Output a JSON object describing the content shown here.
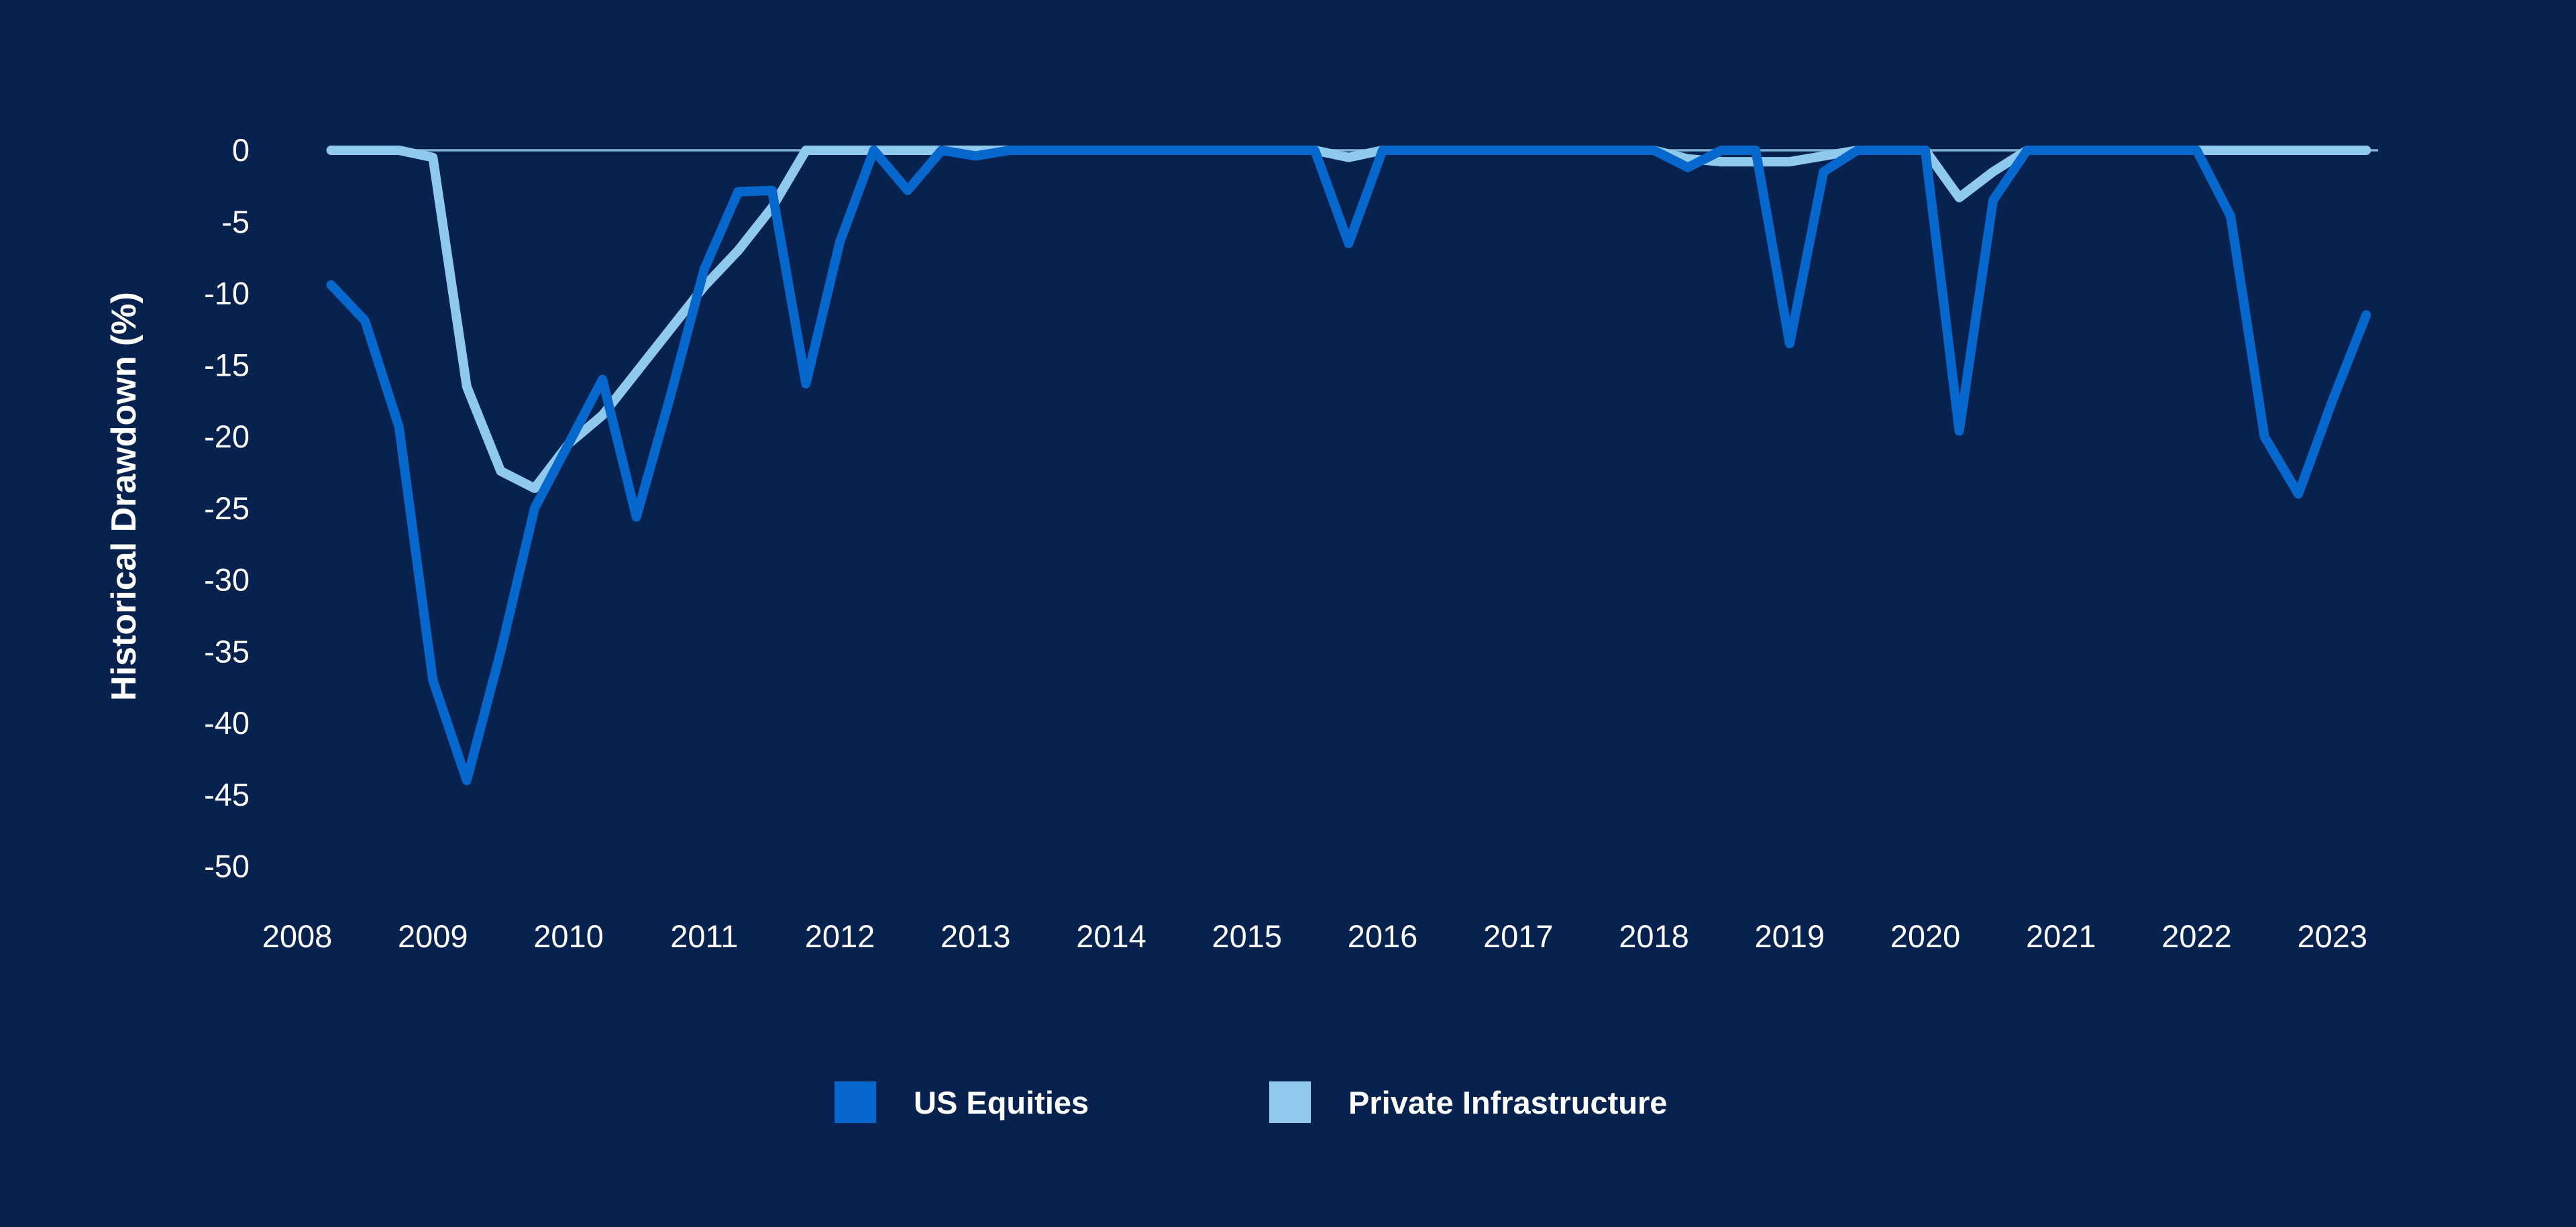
{
  "page": {
    "background_color": "#082250"
  },
  "chart": {
    "y_axis": {
      "title": "Historical Drawdown (%)",
      "tick_labels": [
        "0",
        "-5",
        "-10",
        "-15",
        "-20",
        "-25",
        "-30",
        "-35",
        "-40",
        "-45",
        "-50"
      ]
    },
    "x_axis": {
      "tick_labels": [
        "2008",
        "2009",
        "2010",
        "2011",
        "2012",
        "2013",
        "2014",
        "2015",
        "2016",
        "2017",
        "2018",
        "2019",
        "2020",
        "2021",
        "2022",
        "2023"
      ]
    },
    "legend": {
      "items": [
        {
          "label": "US Equities",
          "color": "#0667CC"
        },
        {
          "label": "Private Infrastructure",
          "color": "#8FCAEE"
        }
      ]
    },
    "colors": {
      "background": "#082250",
      "us_equities_line": "#0667CC",
      "private_infrastructure_line": "#8FCAEE",
      "zero_axis_line": "#8FC2E4",
      "text": "#FFFFFF"
    }
  },
  "chart_data": {
    "type": "line",
    "title": "",
    "xlabel": "",
    "ylabel": "Historical Drawdown (%)",
    "ylim": [
      -50,
      0
    ],
    "grid": "off",
    "legend_position": "bottom",
    "frequency": "quarterly",
    "x_tick_labels": [
      "2008",
      "2009",
      "2010",
      "2011",
      "2012",
      "2013",
      "2014",
      "2015",
      "2016",
      "2017",
      "2018",
      "2019",
      "2020",
      "2021",
      "2022",
      "2023"
    ],
    "y_ticks": [
      0,
      -5,
      -10,
      -15,
      -20,
      -25,
      -30,
      -35,
      -40,
      -45,
      -50
    ],
    "categories": [
      "2008 Q1",
      "2008 Q2",
      "2008 Q3",
      "2008 Q4",
      "2009 Q1",
      "2009 Q2",
      "2009 Q3",
      "2009 Q4",
      "2010 Q1",
      "2010 Q2",
      "2010 Q3",
      "2010 Q4",
      "2011 Q1",
      "2011 Q2",
      "2011 Q3",
      "2011 Q4",
      "2012 Q1",
      "2012 Q2",
      "2012 Q3",
      "2012 Q4",
      "2013 Q1",
      "2013 Q2",
      "2013 Q3",
      "2013 Q4",
      "2014 Q1",
      "2014 Q2",
      "2014 Q3",
      "2014 Q4",
      "2015 Q1",
      "2015 Q2",
      "2015 Q3",
      "2015 Q4",
      "2016 Q1",
      "2016 Q2",
      "2016 Q3",
      "2016 Q4",
      "2017 Q1",
      "2017 Q2",
      "2017 Q3",
      "2017 Q4",
      "2018 Q1",
      "2018 Q2",
      "2018 Q3",
      "2018 Q4",
      "2019 Q1",
      "2019 Q2",
      "2019 Q3",
      "2019 Q4",
      "2020 Q1",
      "2020 Q2",
      "2020 Q3",
      "2020 Q4",
      "2021 Q1",
      "2021 Q2",
      "2021 Q3",
      "2021 Q4",
      "2022 Q1",
      "2022 Q2",
      "2022 Q3",
      "2022 Q4",
      "2023 Q1"
    ],
    "series": [
      {
        "name": "US Equities",
        "color": "#0667CC",
        "values": [
          -9.4,
          -11.9,
          -19.3,
          -37.0,
          -44.0,
          -35.0,
          -25.0,
          -20.5,
          -16.0,
          -25.6,
          -17.2,
          -8.3,
          -2.9,
          -2.8,
          -16.3,
          -6.4,
          0,
          -2.8,
          0,
          -0.4,
          0,
          0,
          0,
          0,
          0,
          0,
          0,
          0,
          0,
          0,
          -6.5,
          0,
          0,
          0,
          0,
          0,
          0,
          0,
          0,
          0,
          -1.2,
          0,
          0,
          -13.5,
          -1.5,
          0,
          0,
          0,
          -19.6,
          -3.5,
          0,
          0,
          0,
          0,
          0,
          0,
          -4.6,
          -20.0,
          -24.0,
          -17.5,
          -11.5
        ]
      },
      {
        "name": "Private Infrastructure",
        "color": "#8FCAEE",
        "values": [
          0,
          0,
          0,
          -0.5,
          -16.5,
          -22.4,
          -23.6,
          -20.5,
          -18.5,
          -15.5,
          -12.5,
          -9.5,
          -7.0,
          -4.0,
          0,
          0,
          0,
          0,
          0,
          0,
          0,
          0,
          0,
          0,
          0,
          0,
          0,
          0,
          0,
          0,
          -0.5,
          0,
          0,
          0,
          0,
          0,
          0,
          0,
          0,
          0,
          -0.6,
          -0.8,
          -0.8,
          -0.8,
          -0.4,
          0,
          0,
          0,
          -3.3,
          -1.5,
          0,
          0,
          0,
          0,
          0,
          0,
          0,
          0,
          0,
          0,
          0
        ]
      }
    ]
  }
}
